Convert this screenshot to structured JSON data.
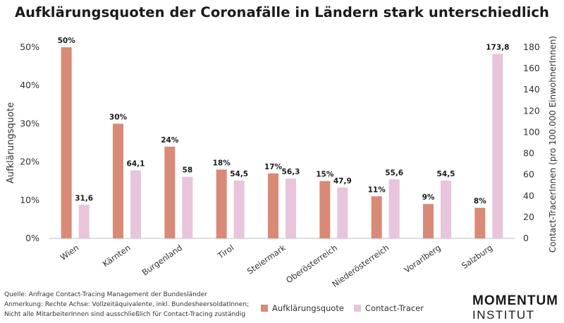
{
  "chart_data": {
    "type": "bar",
    "title": "Aufklärungsquoten der Coronafälle in Ländern stark unterschiedlich",
    "categories": [
      "Wien",
      "Kärnten",
      "Burgenland",
      "Tirol",
      "Steiermark",
      "Oberösterreich",
      "Niederösterreich",
      "Vorarlberg",
      "Salzburg"
    ],
    "series": [
      {
        "name": "Aufklärungsquote",
        "axis": "left",
        "color": "#d98a76",
        "values": [
          50,
          30,
          24,
          18,
          17,
          15,
          11,
          9,
          8
        ],
        "labels": [
          "50%",
          "30%",
          "24%",
          "18%",
          "17%",
          "15%",
          "11%",
          "9%",
          "8%"
        ]
      },
      {
        "name": "Contact-Tracer",
        "axis": "right",
        "color": "#e8c4dd",
        "values": [
          31.6,
          64.1,
          58,
          54.5,
          56.3,
          47.9,
          55.6,
          54.5,
          173.8
        ],
        "labels": [
          "31,6",
          "64,1",
          "58",
          "54,5",
          "56,3",
          "47,9",
          "55,6",
          "54,5",
          "173,8"
        ]
      }
    ],
    "ylabel": "Aufklärungsquote",
    "ylabel_right": "Contact-TracerInnen (pro 100.000 EinwohnerInnen)",
    "ylim": [
      0,
      50
    ],
    "ylim_right": [
      0,
      180
    ],
    "yticks": [
      "0%",
      "10%",
      "20%",
      "30%",
      "40%",
      "50%"
    ],
    "yticks_right": [
      "0",
      "20",
      "40",
      "60",
      "80",
      "100",
      "120",
      "140",
      "160",
      "180"
    ],
    "legend": "bottom-center",
    "grid": false
  },
  "footnotes": {
    "source": "Quelle: Anfrage Contact-Tracing Management der Bundesländer",
    "note1": "Anmerkung: Rechte Achse: Vollzeitäquivalente, inkl. BundesheersoldatInnen;",
    "note2": "Nicht alle MitarbeiterInnen sind ausschließlich für Contact-Tracing zuständig"
  },
  "logo": {
    "line1": "MOMENTUM",
    "line2": "INSTITUT"
  }
}
